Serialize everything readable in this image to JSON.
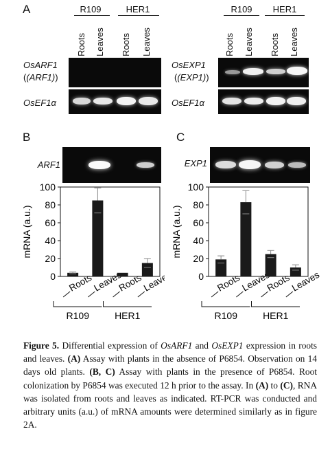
{
  "panel_a": {
    "letter": "A",
    "left": {
      "group_labels": [
        "R109",
        "HER1"
      ],
      "lane_labels": [
        "Roots",
        "Leaves",
        "Roots",
        "Leaves"
      ],
      "gene_top_line1": "OsARF1",
      "gene_top_line2": "(ARF1)",
      "gene_bottom": "OsEF1α"
    },
    "right": {
      "group_labels": [
        "R109",
        "HER1"
      ],
      "lane_labels": [
        "Roots",
        "Leaves",
        "Roots",
        "Leaves"
      ],
      "gene_top_line1": "OsEXP1",
      "gene_top_line2": "(EXP1)",
      "gene_bottom": "OsEF1α"
    }
  },
  "panel_b": {
    "letter": "B",
    "gene": "ARF1"
  },
  "panel_c": {
    "letter": "C",
    "gene": "EXP1"
  },
  "x_labels": {
    "cat_labels": [
      "Roots",
      "Leaves",
      "Roots",
      "Leaves"
    ],
    "group_labels": [
      "R109",
      "HER1"
    ]
  },
  "chart_data": [
    {
      "type": "bar",
      "panel": "B",
      "categories": [
        "Roots",
        "Leaves",
        "Roots",
        "Leaves"
      ],
      "groups": [
        "R109",
        "HER1"
      ],
      "values": [
        4,
        85,
        4,
        15
      ],
      "errors": [
        1,
        14,
        0.5,
        5
      ],
      "ylabel": "mRNA (a.u.)",
      "ylim": [
        0,
        100
      ],
      "yticks": [
        "0",
        "20",
        "40",
        "60",
        "80",
        "100"
      ]
    },
    {
      "type": "bar",
      "panel": "C",
      "categories": [
        "Roots",
        "Leaves",
        "Roots",
        "Leaves"
      ],
      "groups": [
        "R109",
        "HER1"
      ],
      "values": [
        19,
        83,
        25,
        10
      ],
      "errors": [
        4,
        13,
        4,
        3
      ],
      "ylabel": "mRNA (a.u.)",
      "ylim": [
        0,
        100
      ],
      "yticks": [
        "0",
        "20",
        "40",
        "60",
        "80",
        "100"
      ]
    }
  ],
  "caption": {
    "fig_label": "Figure 5.",
    "s1": " Differential expression of ",
    "g1": "OsARF1",
    "s2": " and ",
    "g2": "OsEXP1",
    "s3": " expression in roots and leaves. ",
    "a_mark": "(A)",
    "s4": " Assay with plants in the absence of P6854. Observation on 14 days old plants. ",
    "bc_mark": "(B, C)",
    "s5": " Assay with plants in the presence of P6854. Root colonization by P6854 was executed 12 h prior to the assay. In ",
    "a_mark2": "(A)",
    "s6": " to ",
    "c_mark": "(C)",
    "s7": ", RNA was isolated from roots and leaves as indicated. RT-PCR was conducted and arbitrary units (a.u.) of mRNA amounts were determined similarly as in figure 2A."
  }
}
